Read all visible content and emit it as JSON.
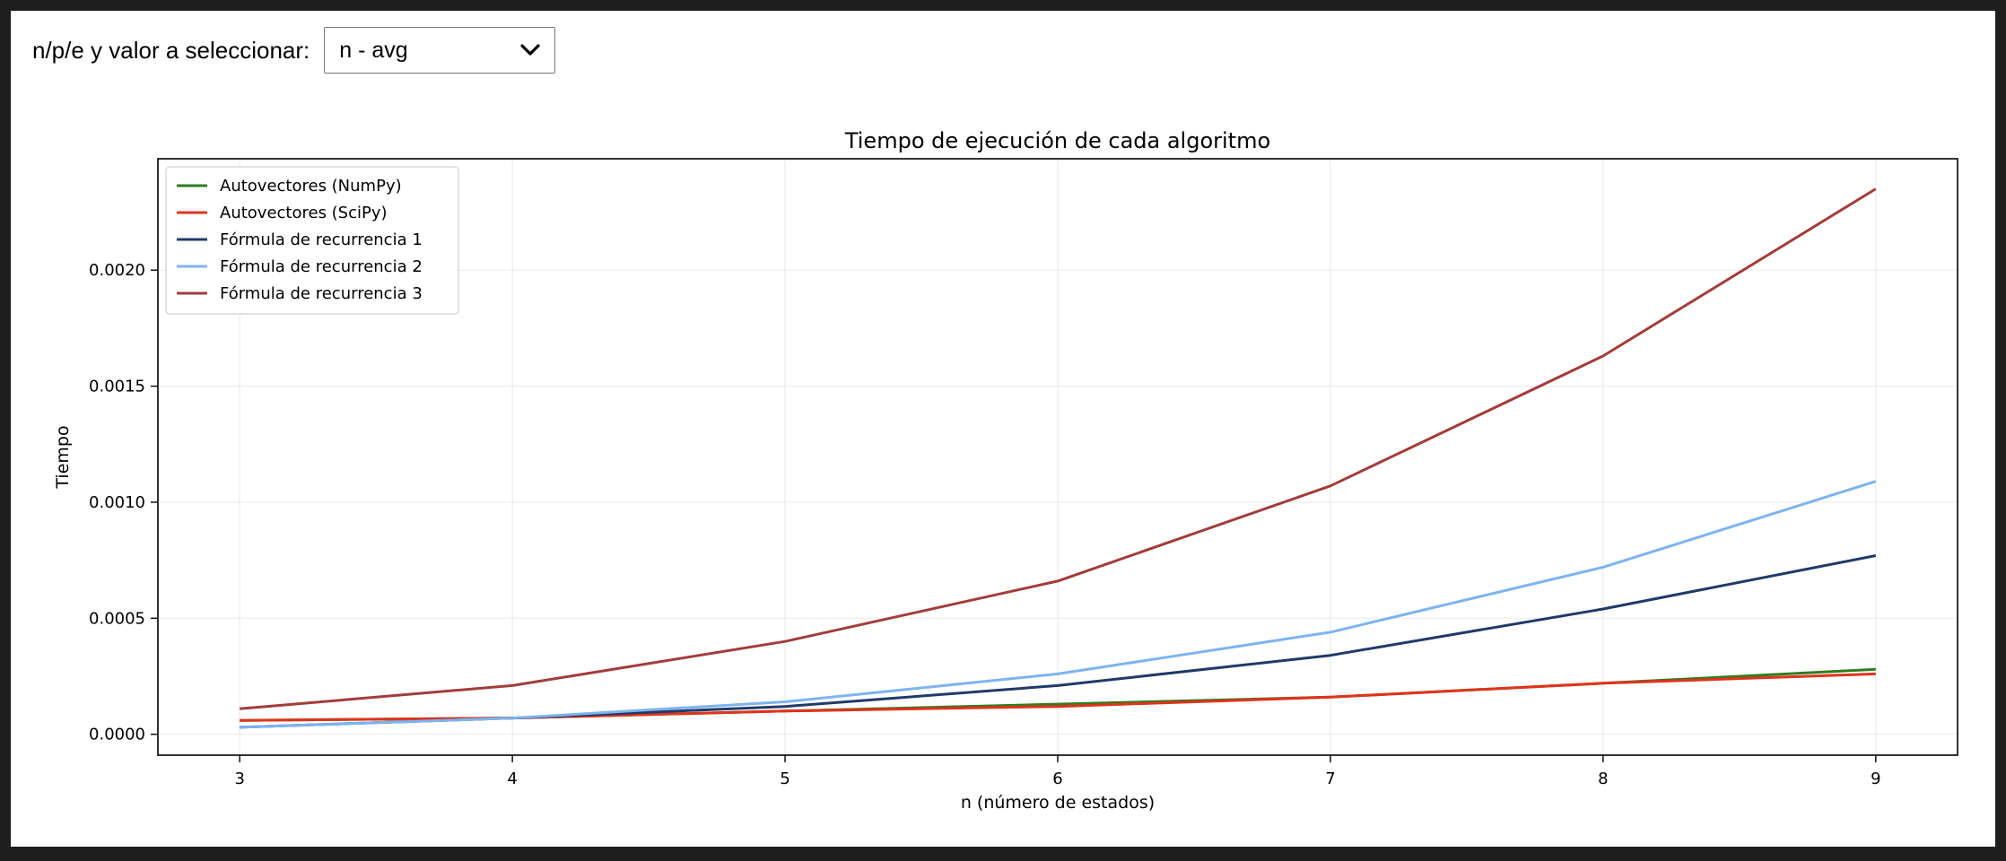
{
  "controls": {
    "label": "n/p/e y valor a seleccionar:",
    "selected": "n - avg",
    "chevron_icon": "chevron-down-icon"
  },
  "chart_data": {
    "type": "line",
    "title": "Tiempo de ejecución de cada algoritmo",
    "xlabel": "n (número de estados)",
    "ylabel": "Tiempo",
    "x": [
      3,
      4,
      5,
      6,
      7,
      8,
      9
    ],
    "xlim": [
      2.7,
      9.3
    ],
    "ylim": [
      -9e-05,
      0.00248
    ],
    "xticks": [
      "3",
      "4",
      "5",
      "6",
      "7",
      "8",
      "9"
    ],
    "yticks": [
      {
        "value": 0.0,
        "label": "0.0000"
      },
      {
        "value": 0.0005,
        "label": "0.0005"
      },
      {
        "value": 0.001,
        "label": "0.0010"
      },
      {
        "value": 0.0015,
        "label": "0.0015"
      },
      {
        "value": 0.002,
        "label": "0.0020"
      }
    ],
    "grid": true,
    "legend_position": "top-left",
    "series": [
      {
        "name": "Autovectores (NumPy)",
        "color": "#2e7d1e",
        "values": [
          6e-05,
          7e-05,
          0.0001,
          0.00013,
          0.00016,
          0.00022,
          0.00028
        ]
      },
      {
        "name": "Autovectores (SciPy)",
        "color": "#e0331c",
        "values": [
          6e-05,
          7e-05,
          0.0001,
          0.00012,
          0.00016,
          0.00022,
          0.00026
        ]
      },
      {
        "name": "Fórmula de recurrencia 1",
        "color": "#1f3a68",
        "values": [
          3e-05,
          7e-05,
          0.00012,
          0.00021,
          0.00034,
          0.00054,
          0.00077
        ]
      },
      {
        "name": "Fórmula de recurrencia 2",
        "color": "#7db3f0",
        "values": [
          3e-05,
          7e-05,
          0.00014,
          0.00026,
          0.00044,
          0.00072,
          0.00109
        ]
      },
      {
        "name": "Fórmula de recurrencia 3",
        "color": "#a23c3a",
        "values": [
          0.00011,
          0.00021,
          0.0004,
          0.00066,
          0.00107,
          0.00163,
          0.00235
        ]
      }
    ]
  }
}
